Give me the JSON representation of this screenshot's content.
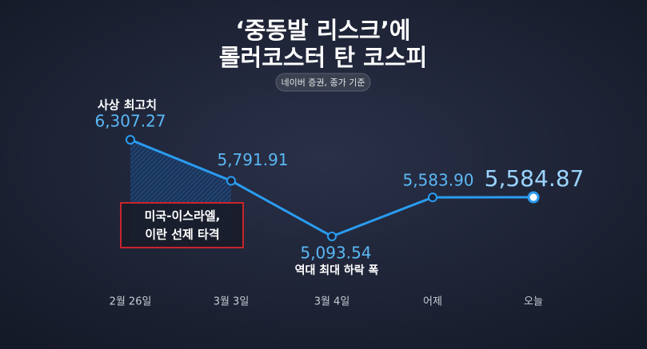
{
  "chart_data": {
    "type": "line",
    "title": [
      "‘중동발 리스크’에",
      "롤러코스터 탄 코스피"
    ],
    "subtitle": "네이버 증권, 종가 기준",
    "categories": [
      "2월 26일",
      "3월 3일",
      "3월 4일",
      "어제",
      "오늘"
    ],
    "values": [
      6307.27,
      5791.91,
      5093.54,
      5583.9,
      5584.87
    ],
    "value_labels": [
      "6,307.27",
      "5,791.91",
      "5,093.54",
      "5,583.90",
      "5,584.87"
    ],
    "color": "#2a9cf0",
    "annotations": [
      "사상 최고치",
      "미국-이스라엘,",
      "이란 선제 타격",
      "역대 최대 하락 폭"
    ]
  }
}
